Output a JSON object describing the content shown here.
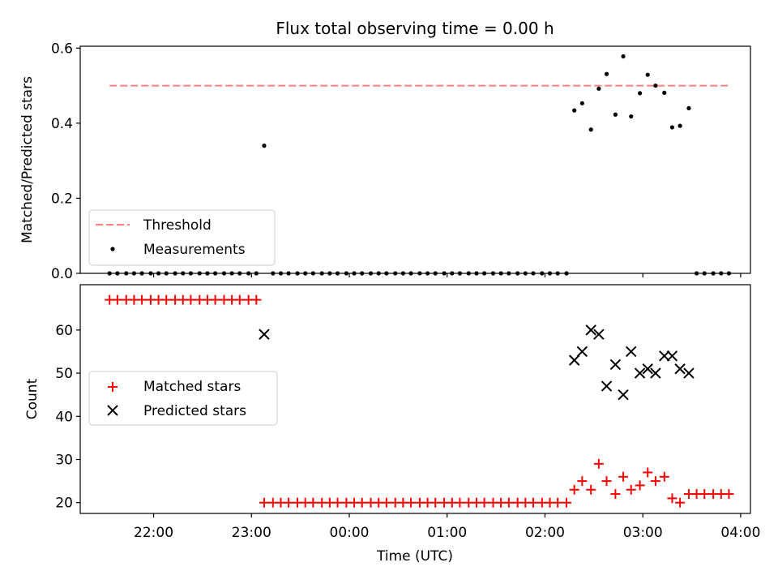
{
  "chart_data": {
    "type": "scatter",
    "title": "Flux total observing time = 0.00 h",
    "x_axis": {
      "label": "Time (UTC)",
      "ticks": [
        "22:00",
        "23:00",
        "00:00",
        "01:00",
        "02:00",
        "03:00",
        "04:00"
      ],
      "tick_hours": [
        22,
        23,
        24,
        25,
        26,
        27,
        28
      ],
      "range_hours": [
        21.25,
        28.1
      ]
    },
    "top_panel": {
      "ylabel": "Matched/Predicted stars",
      "ylim": [
        0,
        0.605
      ],
      "yticks": [
        "0.0",
        "0.2",
        "0.4",
        "0.6"
      ],
      "ytick_values": [
        0,
        0.2,
        0.4,
        0.6
      ],
      "legend": {
        "location": "lower-left",
        "threshold_label": "Threshold",
        "measurements_label": "Measurements"
      },
      "threshold": {
        "value": 0.5,
        "x_range": [
          21.55,
          27.88
        ],
        "color": "#ff7f7f"
      },
      "measurements_color": "#000000",
      "measurements": [
        [
          21.55,
          0
        ],
        [
          21.63,
          0
        ],
        [
          21.72,
          0
        ],
        [
          21.8,
          0
        ],
        [
          21.88,
          0
        ],
        [
          21.97,
          0
        ],
        [
          22.05,
          0
        ],
        [
          22.13,
          0
        ],
        [
          22.22,
          0
        ],
        [
          22.3,
          0
        ],
        [
          22.38,
          0
        ],
        [
          22.47,
          0
        ],
        [
          22.55,
          0
        ],
        [
          22.63,
          0
        ],
        [
          22.72,
          0
        ],
        [
          22.8,
          0
        ],
        [
          22.88,
          0
        ],
        [
          22.97,
          0
        ],
        [
          23.05,
          0
        ],
        [
          23.13,
          0.34
        ],
        [
          23.22,
          0
        ],
        [
          23.3,
          0
        ],
        [
          23.38,
          0
        ],
        [
          23.47,
          0
        ],
        [
          23.55,
          0
        ],
        [
          23.63,
          0
        ],
        [
          23.72,
          0
        ],
        [
          23.8,
          0
        ],
        [
          23.88,
          0
        ],
        [
          23.97,
          0
        ],
        [
          24.05,
          0
        ],
        [
          24.13,
          0
        ],
        [
          24.22,
          0
        ],
        [
          24.3,
          0
        ],
        [
          24.38,
          0
        ],
        [
          24.47,
          0
        ],
        [
          24.55,
          0
        ],
        [
          24.63,
          0
        ],
        [
          24.72,
          0
        ],
        [
          24.8,
          0
        ],
        [
          24.88,
          0
        ],
        [
          24.97,
          0
        ],
        [
          25.05,
          0
        ],
        [
          25.13,
          0
        ],
        [
          25.22,
          0
        ],
        [
          25.3,
          0
        ],
        [
          25.38,
          0
        ],
        [
          25.47,
          0
        ],
        [
          25.55,
          0
        ],
        [
          25.63,
          0
        ],
        [
          25.72,
          0
        ],
        [
          25.8,
          0
        ],
        [
          25.88,
          0
        ],
        [
          25.97,
          0
        ],
        [
          26.05,
          0
        ],
        [
          26.13,
          0
        ],
        [
          26.22,
          0
        ],
        [
          26.3,
          0.434
        ],
        [
          26.38,
          0.453
        ],
        [
          26.47,
          0.383
        ],
        [
          26.55,
          0.492
        ],
        [
          26.63,
          0.531
        ],
        [
          26.72,
          0.423
        ],
        [
          26.8,
          0.578
        ],
        [
          26.88,
          0.418
        ],
        [
          26.97,
          0.48
        ],
        [
          27.05,
          0.529
        ],
        [
          27.13,
          0.5
        ],
        [
          27.22,
          0.481
        ],
        [
          27.3,
          0.389
        ],
        [
          27.38,
          0.393
        ],
        [
          27.47,
          0.44
        ],
        [
          27.55,
          0
        ],
        [
          27.63,
          0
        ],
        [
          27.72,
          0
        ],
        [
          27.8,
          0
        ],
        [
          27.88,
          0
        ]
      ]
    },
    "bottom_panel": {
      "ylabel": "Count",
      "ylim": [
        17.5,
        70.5
      ],
      "yticks": [
        "20",
        "30",
        "40",
        "50",
        "60"
      ],
      "ytick_values": [
        20,
        30,
        40,
        50,
        60
      ],
      "legend": {
        "location": "center-left",
        "matched_label": "Matched stars",
        "predicted_label": "Predicted stars"
      },
      "matched_color": "#ff0000",
      "predicted_color": "#000000",
      "matched": [
        [
          21.55,
          67
        ],
        [
          21.63,
          67
        ],
        [
          21.72,
          67
        ],
        [
          21.8,
          67
        ],
        [
          21.88,
          67
        ],
        [
          21.97,
          67
        ],
        [
          22.05,
          67
        ],
        [
          22.13,
          67
        ],
        [
          22.22,
          67
        ],
        [
          22.3,
          67
        ],
        [
          22.38,
          67
        ],
        [
          22.47,
          67
        ],
        [
          22.55,
          67
        ],
        [
          22.63,
          67
        ],
        [
          22.72,
          67
        ],
        [
          22.8,
          67
        ],
        [
          22.88,
          67
        ],
        [
          22.97,
          67
        ],
        [
          23.05,
          67
        ],
        [
          23.13,
          20
        ],
        [
          23.22,
          20
        ],
        [
          23.3,
          20
        ],
        [
          23.38,
          20
        ],
        [
          23.47,
          20
        ],
        [
          23.55,
          20
        ],
        [
          23.63,
          20
        ],
        [
          23.72,
          20
        ],
        [
          23.8,
          20
        ],
        [
          23.88,
          20
        ],
        [
          23.97,
          20
        ],
        [
          24.05,
          20
        ],
        [
          24.13,
          20
        ],
        [
          24.22,
          20
        ],
        [
          24.3,
          20
        ],
        [
          24.38,
          20
        ],
        [
          24.47,
          20
        ],
        [
          24.55,
          20
        ],
        [
          24.63,
          20
        ],
        [
          24.72,
          20
        ],
        [
          24.8,
          20
        ],
        [
          24.88,
          20
        ],
        [
          24.97,
          20
        ],
        [
          25.05,
          20
        ],
        [
          25.13,
          20
        ],
        [
          25.22,
          20
        ],
        [
          25.3,
          20
        ],
        [
          25.38,
          20
        ],
        [
          25.47,
          20
        ],
        [
          25.55,
          20
        ],
        [
          25.63,
          20
        ],
        [
          25.72,
          20
        ],
        [
          25.8,
          20
        ],
        [
          25.88,
          20
        ],
        [
          25.97,
          20
        ],
        [
          26.05,
          20
        ],
        [
          26.13,
          20
        ],
        [
          26.22,
          20
        ],
        [
          26.3,
          23
        ],
        [
          26.38,
          25
        ],
        [
          26.47,
          23
        ],
        [
          26.55,
          29
        ],
        [
          26.63,
          25
        ],
        [
          26.72,
          22
        ],
        [
          26.8,
          26
        ],
        [
          26.88,
          23
        ],
        [
          26.97,
          24
        ],
        [
          27.05,
          27
        ],
        [
          27.13,
          25
        ],
        [
          27.22,
          26
        ],
        [
          27.3,
          21
        ],
        [
          27.38,
          20
        ],
        [
          27.47,
          22
        ],
        [
          27.55,
          22
        ],
        [
          27.63,
          22
        ],
        [
          27.72,
          22
        ],
        [
          27.8,
          22
        ],
        [
          27.88,
          22
        ]
      ],
      "predicted": [
        [
          23.13,
          59
        ],
        [
          26.3,
          53
        ],
        [
          26.38,
          55
        ],
        [
          26.47,
          60
        ],
        [
          26.55,
          59
        ],
        [
          26.63,
          47
        ],
        [
          26.72,
          52
        ],
        [
          26.8,
          45
        ],
        [
          26.88,
          55
        ],
        [
          26.97,
          50
        ],
        [
          27.05,
          51
        ],
        [
          27.13,
          50
        ],
        [
          27.22,
          54
        ],
        [
          27.3,
          54
        ],
        [
          27.38,
          51
        ],
        [
          27.47,
          50
        ]
      ]
    }
  }
}
